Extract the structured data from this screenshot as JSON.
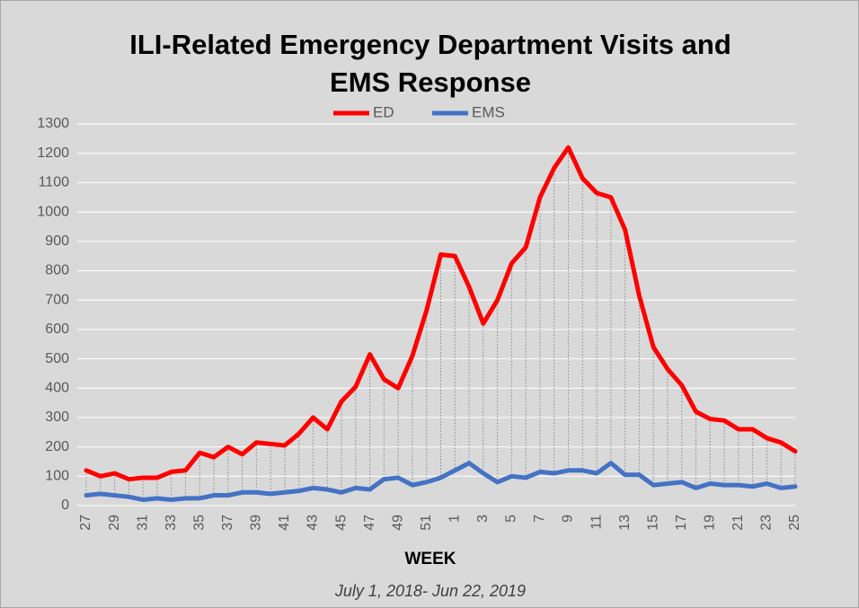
{
  "chart_data": {
    "type": "line",
    "title": "ILI-Related Emergency Department Visits and EMS Response",
    "x_label": "WEEK",
    "subtitle": "July 1, 2018- Jun 22, 2019",
    "categories": [
      "27",
      null,
      "29",
      null,
      "31",
      null,
      "33",
      null,
      "35",
      null,
      "37",
      null,
      "39",
      null,
      "41",
      null,
      "43",
      null,
      "45",
      null,
      "47",
      null,
      "49",
      null,
      "51",
      null,
      "1",
      null,
      "3",
      null,
      "5",
      null,
      "7",
      null,
      "9",
      null,
      "11",
      null,
      "13",
      null,
      "15",
      null,
      "17",
      null,
      "19",
      null,
      "21",
      null,
      "23",
      null,
      "25"
    ],
    "series": [
      {
        "name": "ED",
        "color": "#ff0000",
        "values": [
          120,
          100,
          110,
          90,
          95,
          95,
          115,
          120,
          180,
          165,
          200,
          175,
          215,
          210,
          205,
          245,
          300,
          260,
          355,
          405,
          515,
          430,
          400,
          510,
          665,
          855,
          850,
          745,
          620,
          700,
          825,
          880,
          1050,
          1150,
          1220,
          1115,
          1065,
          1050,
          940,
          715,
          540,
          465,
          410,
          320,
          295,
          290,
          260,
          260,
          230,
          215,
          185
        ]
      },
      {
        "name": "EMS",
        "color": "#4472c4",
        "values": [
          35,
          40,
          35,
          30,
          20,
          25,
          20,
          25,
          25,
          35,
          35,
          45,
          45,
          40,
          45,
          50,
          60,
          55,
          45,
          60,
          55,
          90,
          95,
          70,
          80,
          95,
          120,
          145,
          110,
          80,
          100,
          95,
          115,
          110,
          120,
          120,
          110,
          145,
          105,
          105,
          70,
          75,
          80,
          60,
          75,
          70,
          70,
          65,
          75,
          60,
          65
        ]
      }
    ],
    "ylim": [
      0,
      1300
    ],
    "yticks": [
      0,
      100,
      200,
      300,
      400,
      500,
      600,
      700,
      800,
      900,
      1000,
      1100,
      1200,
      1300
    ],
    "grid": true,
    "drop_lines": true,
    "legend": "top"
  }
}
